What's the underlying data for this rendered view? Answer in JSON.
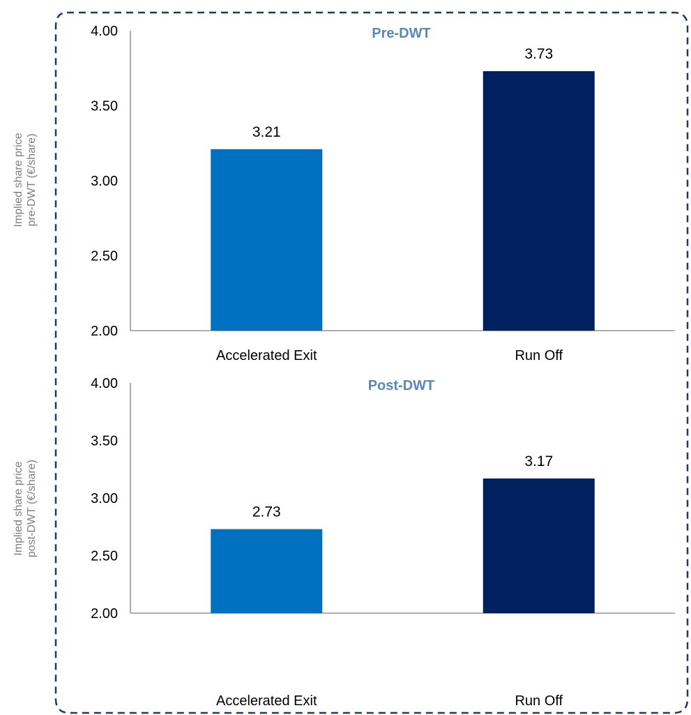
{
  "chart_data": [
    {
      "type": "bar",
      "title": "Pre-DWT",
      "ylabel": [
        "Implied share price",
        "pre-DWT (€/share)"
      ],
      "categories": [
        "Accelerated Exit",
        "Run Off"
      ],
      "values": [
        3.21,
        3.73
      ],
      "value_labels": [
        "3.21",
        "3.73"
      ],
      "bar_colors": [
        "#0070c0",
        "#002060"
      ],
      "ylim": [
        2.0,
        4.0
      ],
      "yticks": [
        "2.00",
        "2.50",
        "3.00",
        "3.50",
        "4.00"
      ],
      "ytick_values": [
        2.0,
        2.5,
        3.0,
        3.5,
        4.0
      ],
      "grid": false
    },
    {
      "type": "bar",
      "title": "Post-DWT",
      "ylabel": [
        "Implied share price",
        "post-DWT (€/share)"
      ],
      "categories": [
        "Accelerated Exit",
        "Run Off"
      ],
      "values": [
        2.73,
        3.17
      ],
      "value_labels": [
        "2.73",
        "3.17"
      ],
      "bar_colors": [
        "#0070c0",
        "#002060"
      ],
      "ylim": [
        2.0,
        4.0
      ],
      "yticks": [
        "2.00",
        "2.50",
        "3.00",
        "3.50",
        "4.00"
      ],
      "ytick_values": [
        2.0,
        2.5,
        3.0,
        3.5,
        4.0
      ],
      "grid": false
    }
  ],
  "colors": {
    "title": "#5b87b8",
    "axis_title": "#7f7f7f",
    "axis_line": "#7f7f7f",
    "border": "#1f3864"
  }
}
